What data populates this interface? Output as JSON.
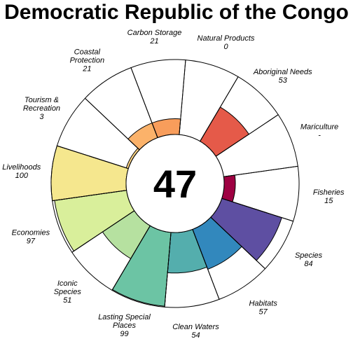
{
  "chart_data": {
    "type": "flower",
    "title": "Democratic Republic of the Congo",
    "center_score": "47",
    "value_max": 100,
    "petals": [
      {
        "label_lines": [
          "Fisheries"
        ],
        "score_text": "15",
        "value": 15,
        "color": "#9E0142"
      },
      {
        "label_lines": [
          "Species"
        ],
        "score_text": "84",
        "value": 84,
        "color": "#5E4FA2"
      },
      {
        "label_lines": [
          "Habitats"
        ],
        "score_text": "57",
        "value": 57,
        "color": "#3288BD"
      },
      {
        "label_lines": [
          "Clean Waters"
        ],
        "score_text": "54",
        "value": 54,
        "color": "#54AEAD"
      },
      {
        "label_lines": [
          "Lasting Special",
          "Places"
        ],
        "score_text": "99",
        "value": 99,
        "color": "#6CC4A4"
      },
      {
        "label_lines": [
          "Iconic",
          "Species"
        ],
        "score_text": "51",
        "value": 51,
        "color": "#B6E1A0"
      },
      {
        "label_lines": [
          "Economies"
        ],
        "score_text": "97",
        "value": 97,
        "color": "#D9EF9B"
      },
      {
        "label_lines": [
          "Livelihoods"
        ],
        "score_text": "100",
        "value": 100,
        "color": "#F5E78E"
      },
      {
        "label_lines": [
          "Tourism &",
          "Recreation"
        ],
        "score_text": "3",
        "value": 3,
        "color": "#FDD485"
      },
      {
        "label_lines": [
          "Coastal",
          "Protection"
        ],
        "score_text": "21",
        "value": 21,
        "color": "#FBB26A"
      },
      {
        "label_lines": [
          "Carbon Storage"
        ],
        "score_text": "21",
        "value": 21,
        "color": "#F89D5B"
      },
      {
        "label_lines": [
          "Natural Products"
        ],
        "score_text": "0",
        "value": 0,
        "color": "#F46D43"
      },
      {
        "label_lines": [
          "Aboriginal Needs"
        ],
        "score_text": "53",
        "value": 53,
        "color": "#E55A49"
      },
      {
        "label_lines": [
          "Mariculture"
        ],
        "score_text": "-",
        "value": null,
        "color": "#D53E4F"
      }
    ]
  }
}
